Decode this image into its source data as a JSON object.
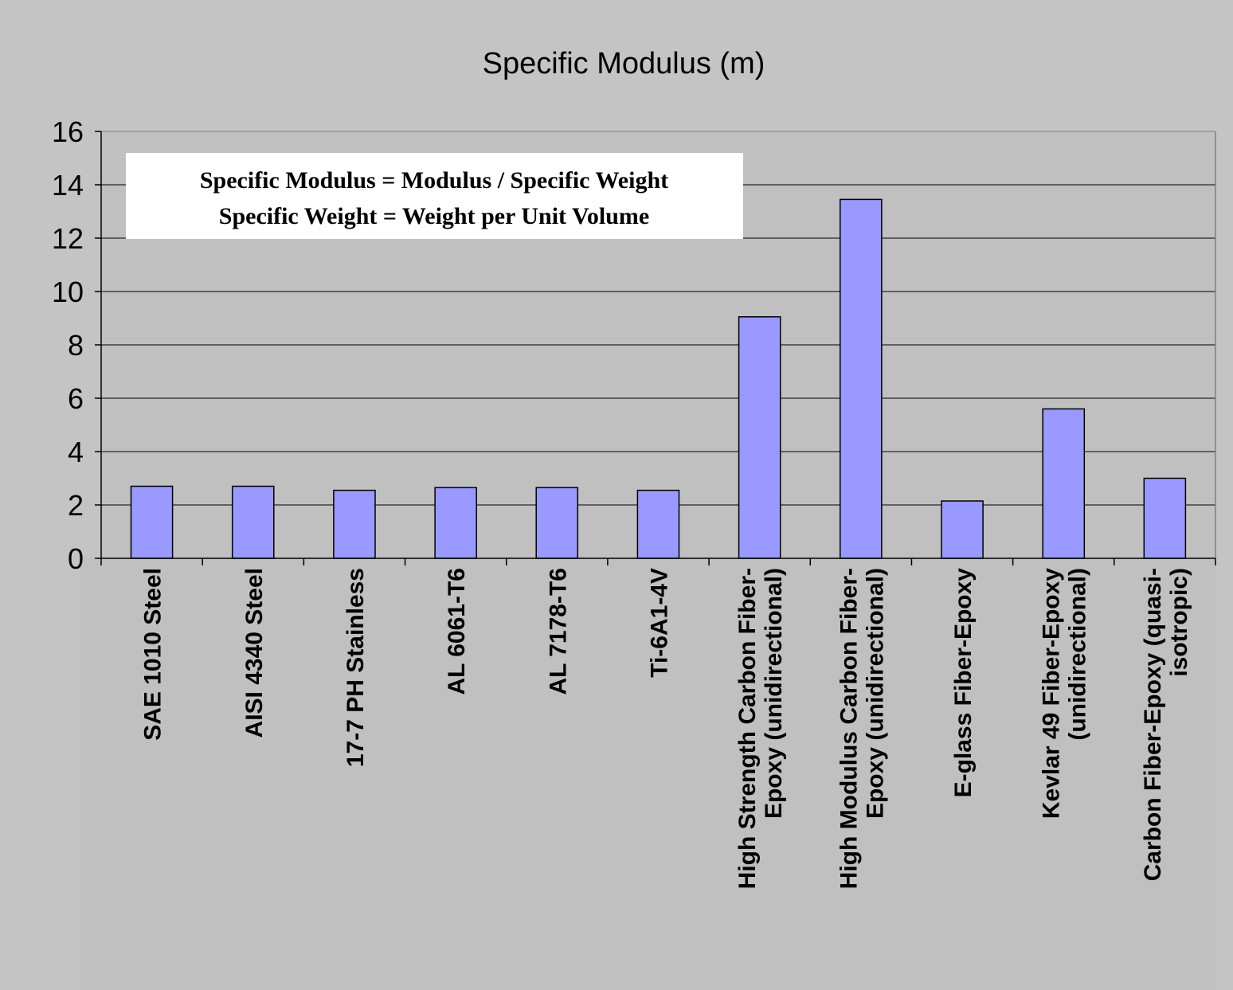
{
  "chart_data": {
    "type": "bar",
    "title": "Specific Modulus (m)",
    "xlabel": "",
    "ylabel": "",
    "ylim": [
      0,
      16
    ],
    "yticks": [
      0,
      2,
      4,
      6,
      8,
      10,
      12,
      14,
      16
    ],
    "grid": true,
    "legend": "none",
    "categories": [
      [
        "SAE 1010 Steel"
      ],
      [
        "AISI 4340 Steel"
      ],
      [
        "17-7 PH Stainless"
      ],
      [
        "AL 6061-T6"
      ],
      [
        "AL 7178-T6"
      ],
      [
        "Ti-6A1-4V"
      ],
      [
        "High Strength Carbon Fiber-",
        "Epoxy (unidirectional)"
      ],
      [
        "High Modulus Carbon Fiber-",
        "Epoxy (unidirectional)"
      ],
      [
        "E-glass Fiber-Epoxy"
      ],
      [
        "Kevlar 49 Fiber-Epoxy",
        "(unidirectional)"
      ],
      [
        "Carbon Fiber-Epoxy (quasi-",
        "isotropic)"
      ]
    ],
    "values": [
      2.7,
      2.7,
      2.55,
      2.65,
      2.65,
      2.55,
      9.05,
      13.45,
      2.15,
      5.6,
      3.0
    ],
    "annotation": [
      "Specific Modulus = Modulus / Specific Weight",
      "Specific Weight = Weight per Unit Volume"
    ],
    "colors": {
      "bar": "#9999ff",
      "plot_bg": "#c0c0c0",
      "page_bg": "#c4c4c4",
      "grid": "#000000"
    }
  }
}
